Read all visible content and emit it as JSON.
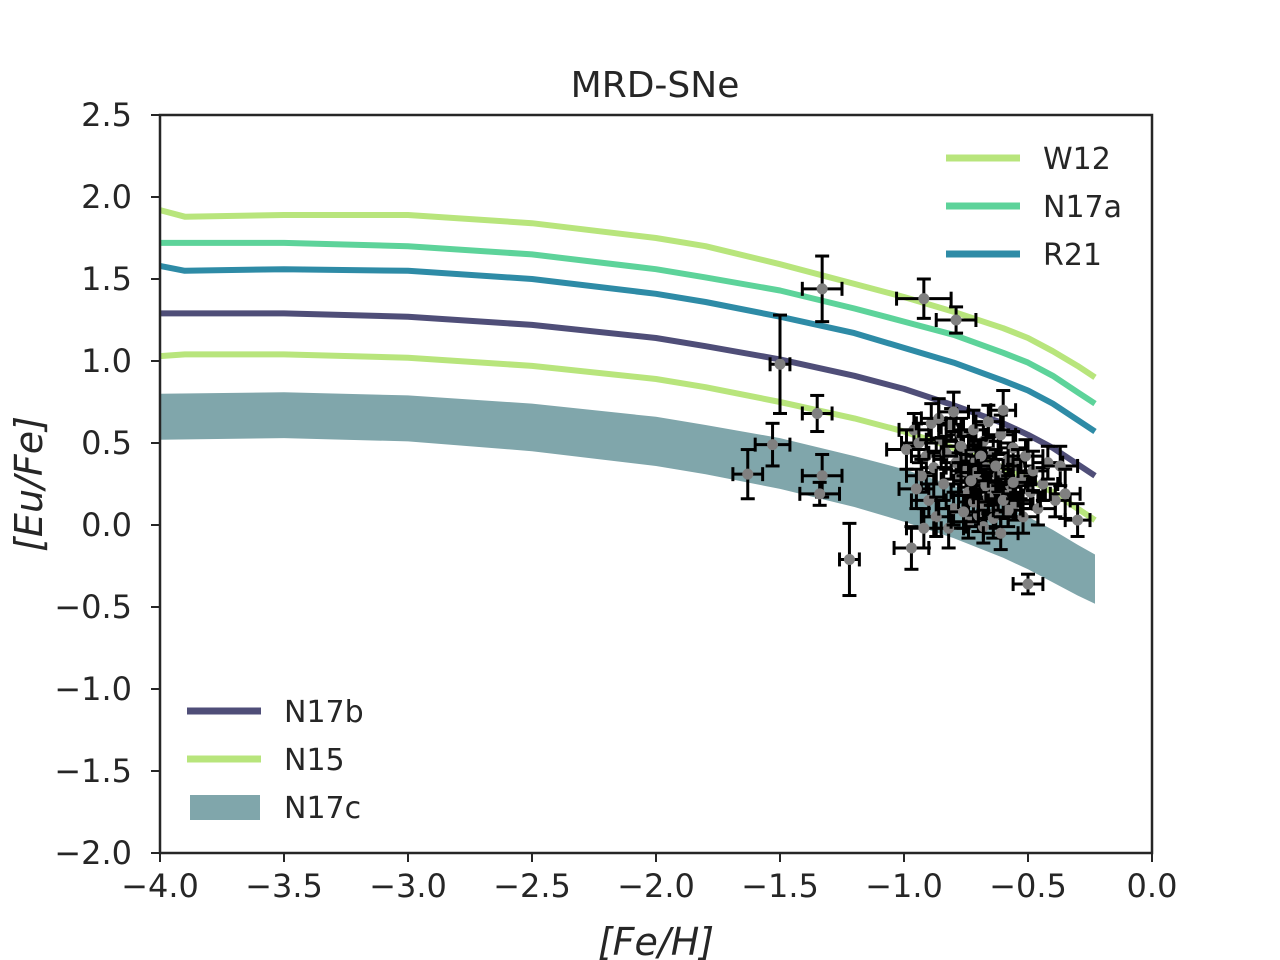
{
  "chart_data": {
    "type": "line",
    "title": "MRD-SNe",
    "xlabel": "[Fe/H]",
    "ylabel": "[Eu/Fe]",
    "xlim": [
      -4.0,
      0.0
    ],
    "ylim": [
      -2.0,
      2.5
    ],
    "xticks": [
      -4.0,
      -3.5,
      -3.0,
      -2.5,
      -2.0,
      -1.5,
      -1.0,
      -0.5,
      0.0
    ],
    "xtick_labels": [
      "−4.0",
      "−3.5",
      "−3.0",
      "−2.5",
      "−2.0",
      "−1.5",
      "−1.0",
      "−0.5",
      "0.0"
    ],
    "yticks": [
      2.5,
      2.0,
      1.5,
      1.0,
      0.5,
      0.0,
      -0.5,
      -1.0,
      -1.5,
      -2.0
    ],
    "ytick_labels": [
      "2.5",
      "2.0",
      "1.5",
      "1.0",
      "0.5",
      "0.0",
      "−0.5",
      "−1.0",
      "−1.5",
      "−2.0"
    ],
    "grid": false,
    "series": [
      {
        "name": "W12",
        "color": "#b8e57c",
        "x": [
          -4.0,
          -3.9,
          -3.5,
          -3.0,
          -2.5,
          -2.0,
          -1.8,
          -1.5,
          -1.2,
          -1.0,
          -0.8,
          -0.6,
          -0.5,
          -0.4,
          -0.3,
          -0.23
        ],
        "y": [
          1.92,
          1.88,
          1.89,
          1.89,
          1.84,
          1.75,
          1.7,
          1.59,
          1.47,
          1.39,
          1.3,
          1.2,
          1.14,
          1.06,
          0.97,
          0.9
        ]
      },
      {
        "name": "N17a",
        "color": "#5dd39a",
        "x": [
          -4.0,
          -3.9,
          -3.5,
          -3.0,
          -2.5,
          -2.0,
          -1.8,
          -1.5,
          -1.2,
          -1.0,
          -0.8,
          -0.6,
          -0.5,
          -0.4,
          -0.3,
          -0.23
        ],
        "y": [
          1.72,
          1.72,
          1.72,
          1.7,
          1.65,
          1.56,
          1.51,
          1.43,
          1.32,
          1.24,
          1.16,
          1.05,
          0.99,
          0.91,
          0.81,
          0.74
        ]
      },
      {
        "name": "R21",
        "color": "#2e8ba6",
        "x": [
          -4.0,
          -3.9,
          -3.5,
          -3.0,
          -2.5,
          -2.0,
          -1.8,
          -1.5,
          -1.2,
          -1.0,
          -0.8,
          -0.6,
          -0.5,
          -0.4,
          -0.3,
          -0.23
        ],
        "y": [
          1.58,
          1.55,
          1.56,
          1.55,
          1.5,
          1.41,
          1.36,
          1.27,
          1.17,
          1.08,
          0.99,
          0.88,
          0.82,
          0.74,
          0.64,
          0.57
        ]
      },
      {
        "name": "N17b",
        "color": "#4f4e78",
        "x": [
          -4.0,
          -3.9,
          -3.5,
          -3.0,
          -2.5,
          -2.0,
          -1.8,
          -1.5,
          -1.2,
          -1.0,
          -0.8,
          -0.6,
          -0.5,
          -0.4,
          -0.3,
          -0.23
        ],
        "y": [
          1.29,
          1.29,
          1.29,
          1.27,
          1.22,
          1.14,
          1.09,
          1.01,
          0.91,
          0.83,
          0.73,
          0.62,
          0.55,
          0.47,
          0.37,
          0.3
        ]
      },
      {
        "name": "N15",
        "color": "#b8e57c",
        "x": [
          -4.0,
          -3.9,
          -3.5,
          -3.0,
          -2.5,
          -2.0,
          -1.8,
          -1.5,
          -1.2,
          -1.0,
          -0.8,
          -0.6,
          -0.5,
          -0.4,
          -0.3,
          -0.23
        ],
        "y": [
          1.03,
          1.04,
          1.04,
          1.02,
          0.97,
          0.89,
          0.84,
          0.75,
          0.65,
          0.57,
          0.47,
          0.35,
          0.28,
          0.2,
          0.1,
          0.03
        ]
      }
    ],
    "band": {
      "name": "N17c",
      "color": "#80a6ab",
      "x": [
        -4.0,
        -3.5,
        -3.0,
        -2.5,
        -2.0,
        -1.8,
        -1.5,
        -1.2,
        -1.0,
        -0.8,
        -0.6,
        -0.5,
        -0.4,
        -0.3,
        -0.23
      ],
      "upper": [
        0.8,
        0.81,
        0.79,
        0.74,
        0.66,
        0.61,
        0.53,
        0.42,
        0.34,
        0.24,
        0.12,
        0.05,
        -0.03,
        -0.12,
        -0.18
      ],
      "lower": [
        0.52,
        0.53,
        0.51,
        0.45,
        0.36,
        0.31,
        0.22,
        0.11,
        0.02,
        -0.08,
        -0.2,
        -0.27,
        -0.35,
        -0.43,
        -0.48
      ]
    },
    "observations": {
      "color": "#808080",
      "points": [
        [
          -1.33,
          1.44,
          0.08,
          0.2
        ],
        [
          -0.92,
          1.38,
          0.11,
          0.12
        ],
        [
          -0.79,
          1.25,
          0.08,
          0.08
        ],
        [
          -1.5,
          0.98,
          0.04,
          0.3
        ],
        [
          -1.35,
          0.68,
          0.06,
          0.11
        ],
        [
          -1.53,
          0.49,
          0.07,
          0.13
        ],
        [
          -1.63,
          0.31,
          0.06,
          0.15
        ],
        [
          -1.33,
          0.3,
          0.08,
          0.13
        ],
        [
          -1.34,
          0.19,
          0.08,
          0.07
        ],
        [
          -1.22,
          -0.21,
          0.04,
          0.22
        ],
        [
          -0.97,
          -0.14,
          0.07,
          0.13
        ],
        [
          -0.5,
          -0.36,
          0.06,
          0.06
        ],
        [
          -0.96,
          0.58,
          0.06,
          0.1
        ],
        [
          -0.94,
          0.5,
          0.07,
          0.12
        ],
        [
          -0.99,
          0.46,
          0.08,
          0.12
        ],
        [
          -0.91,
          0.42,
          0.06,
          0.1
        ],
        [
          -0.88,
          0.35,
          0.05,
          0.1
        ],
        [
          -0.85,
          0.52,
          0.06,
          0.12
        ],
        [
          -0.83,
          0.44,
          0.07,
          0.1
        ],
        [
          -0.81,
          0.61,
          0.05,
          0.1
        ],
        [
          -0.79,
          0.38,
          0.06,
          0.1
        ],
        [
          -0.78,
          0.28,
          0.07,
          0.1
        ],
        [
          -0.77,
          0.55,
          0.06,
          0.1
        ],
        [
          -0.76,
          0.42,
          0.08,
          0.12
        ],
        [
          -0.75,
          0.33,
          0.06,
          0.1
        ],
        [
          -0.74,
          0.2,
          0.07,
          0.12
        ],
        [
          -0.73,
          0.47,
          0.05,
          0.1
        ],
        [
          -0.72,
          0.58,
          0.06,
          0.12
        ],
        [
          -0.71,
          0.39,
          0.06,
          0.1
        ],
        [
          -0.7,
          0.26,
          0.07,
          0.1
        ],
        [
          -0.69,
          0.12,
          0.06,
          0.12
        ],
        [
          -0.68,
          0.51,
          0.06,
          0.1
        ],
        [
          -0.67,
          0.35,
          0.07,
          0.12
        ],
        [
          -0.66,
          0.63,
          0.05,
          0.1
        ],
        [
          -0.65,
          0.22,
          0.06,
          0.1
        ],
        [
          -0.64,
          0.44,
          0.06,
          0.1
        ],
        [
          -0.63,
          0.08,
          0.07,
          0.1
        ],
        [
          -0.62,
          0.3,
          0.06,
          0.1
        ],
        [
          -0.61,
          0.55,
          0.06,
          0.12
        ],
        [
          -0.6,
          0.7,
          0.05,
          0.12
        ],
        [
          -0.59,
          0.18,
          0.07,
          0.1
        ],
        [
          -0.58,
          0.4,
          0.06,
          0.1
        ],
        [
          -0.57,
          0.24,
          0.06,
          0.1
        ],
        [
          -0.56,
          0.47,
          0.06,
          0.1
        ],
        [
          -0.55,
          0.13,
          0.07,
          0.1
        ],
        [
          -0.54,
          0.36,
          0.06,
          0.1
        ],
        [
          -0.53,
          0.28,
          0.06,
          0.12
        ],
        [
          -0.52,
          0.05,
          0.06,
          0.1
        ],
        [
          -0.51,
          0.42,
          0.07,
          0.1
        ],
        [
          -0.49,
          0.2,
          0.06,
          0.1
        ],
        [
          -0.48,
          0.33,
          0.06,
          0.12
        ],
        [
          -0.46,
          0.1,
          0.07,
          0.1
        ],
        [
          -0.44,
          0.25,
          0.06,
          0.1
        ],
        [
          -0.42,
          0.38,
          0.06,
          0.1
        ],
        [
          -0.39,
          0.15,
          0.06,
          0.1
        ],
        [
          -0.37,
          0.36,
          0.07,
          0.12
        ],
        [
          -0.35,
          0.19,
          0.06,
          0.15
        ],
        [
          -0.3,
          0.03,
          0.05,
          0.1
        ],
        [
          -0.9,
          0.15,
          0.07,
          0.1
        ],
        [
          -0.87,
          0.05,
          0.06,
          0.12
        ],
        [
          -0.84,
          0.25,
          0.07,
          0.1
        ],
        [
          -0.82,
          -0.02,
          0.06,
          0.12
        ],
        [
          -0.8,
          0.1,
          0.06,
          0.1
        ],
        [
          -0.74,
          0.02,
          0.07,
          0.1
        ],
        [
          -0.72,
          0.14,
          0.06,
          0.12
        ],
        [
          -0.7,
          0.06,
          0.06,
          0.1
        ],
        [
          -0.68,
          -0.01,
          0.07,
          0.1
        ],
        [
          -0.66,
          0.17,
          0.06,
          0.1
        ],
        [
          -0.64,
          0.04,
          0.06,
          0.12
        ],
        [
          -0.61,
          -0.05,
          0.07,
          0.1
        ],
        [
          -0.58,
          0.09,
          0.06,
          0.1
        ],
        [
          -0.93,
          0.3,
          0.06,
          0.1
        ],
        [
          -0.95,
          0.22,
          0.07,
          0.12
        ],
        [
          -0.89,
          0.62,
          0.06,
          0.12
        ],
        [
          -0.86,
          0.65,
          0.07,
          0.12
        ],
        [
          -0.8,
          0.69,
          0.06,
          0.12
        ],
        [
          -0.77,
          0.48,
          0.07,
          0.1
        ],
        [
          -0.71,
          0.32,
          0.06,
          0.1
        ],
        [
          -0.69,
          0.42,
          0.06,
          0.1
        ],
        [
          -0.67,
          0.24,
          0.06,
          0.1
        ],
        [
          -0.63,
          0.36,
          0.07,
          0.1
        ],
        [
          -0.6,
          0.15,
          0.06,
          0.1
        ],
        [
          -0.56,
          0.26,
          0.06,
          0.1
        ],
        [
          -0.92,
          -0.02,
          0.07,
          0.12
        ],
        [
          -0.76,
          0.08,
          0.06,
          0.1
        ],
        [
          -0.73,
          0.27,
          0.07,
          0.1
        ]
      ]
    },
    "legends": [
      {
        "position": "top-right",
        "items": [
          {
            "label": "W12",
            "kind": "line",
            "color": "#b8e57c"
          },
          {
            "label": "N17a",
            "kind": "line",
            "color": "#5dd39a"
          },
          {
            "label": "R21",
            "kind": "line",
            "color": "#2e8ba6"
          }
        ]
      },
      {
        "position": "bottom-left",
        "items": [
          {
            "label": "N17b",
            "kind": "line",
            "color": "#4f4e78"
          },
          {
            "label": "N15",
            "kind": "line",
            "color": "#b8e57c"
          },
          {
            "label": "N17c",
            "kind": "patch",
            "color": "#80a6ab"
          }
        ]
      }
    ]
  }
}
